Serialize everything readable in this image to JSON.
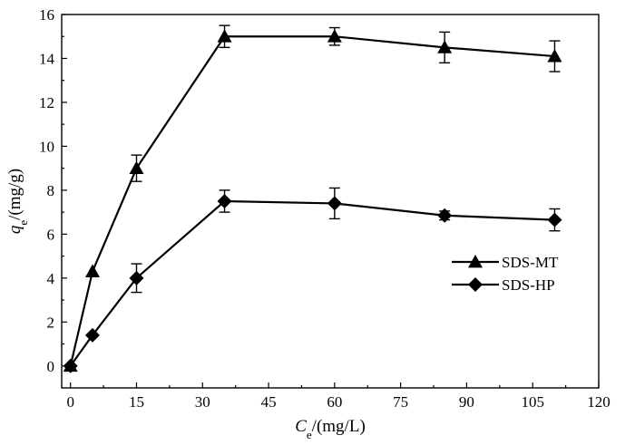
{
  "chart_data": {
    "type": "line",
    "xlabel_main": "C",
    "xlabel_sub": "e",
    "xlabel_unit": "/(mg/L)",
    "ylabel_main": "q",
    "ylabel_sub": "e",
    "ylabel_unit": "/(mg/g)",
    "xlim": [
      -2,
      120
    ],
    "ylim": [
      -1,
      16
    ],
    "x_ticks": [
      0,
      15,
      30,
      45,
      60,
      75,
      90,
      105,
      120
    ],
    "y_ticks": [
      0,
      2,
      4,
      6,
      8,
      10,
      12,
      14,
      16
    ],
    "legend_position": "right-middle",
    "grid": false,
    "series": [
      {
        "name": "SDS-MT",
        "marker": "triangle",
        "x": [
          0,
          5,
          15,
          35,
          60,
          85,
          110
        ],
        "y": [
          0,
          4.3,
          9.0,
          15.0,
          15.0,
          14.5,
          14.1
        ],
        "err": [
          0,
          0,
          0.6,
          0.5,
          0.4,
          0.7,
          0.7
        ]
      },
      {
        "name": "SDS-HP",
        "marker": "diamond",
        "x": [
          0,
          5,
          15,
          35,
          60,
          85,
          110
        ],
        "y": [
          0,
          1.4,
          4.0,
          7.5,
          7.4,
          6.85,
          6.65
        ],
        "err": [
          0,
          0,
          0.65,
          0.5,
          0.7,
          0.2,
          0.5
        ]
      }
    ]
  }
}
